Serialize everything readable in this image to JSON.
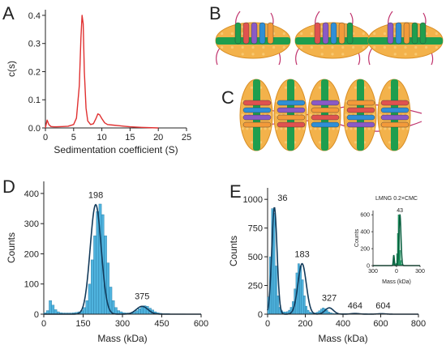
{
  "panels": {
    "A": "A",
    "B": "B",
    "C": "C",
    "D": "D",
    "E": "E"
  },
  "colors": {
    "sv_line": "#e03030",
    "hist_fill": "#4fb3de",
    "hist_stroke": "#1d6f99",
    "fit_line": "#123a5a",
    "inset_fill": "#30c07a",
    "inset_line": "#0a6040",
    "nanodisc_lipid": "#f3b24b",
    "nanodisc_belt": "#1f9e4e",
    "tail": "#c0336d"
  },
  "chart_data": [
    {
      "id": "A",
      "type": "line",
      "title": "",
      "xlabel": "Sedimentation coefficient (S)",
      "ylabel": "c(s)",
      "xlim": [
        0,
        25
      ],
      "ylim": [
        0,
        0.42
      ],
      "xticks": [
        "0",
        "5",
        "10",
        "15",
        "20",
        "25"
      ],
      "yticks": [
        "0.0",
        "0.1",
        "0.2",
        "0.3",
        "0.4"
      ],
      "x": [
        0,
        0.3,
        0.6,
        1,
        1.5,
        2,
        3,
        4,
        5,
        5.5,
        6,
        6.3,
        6.5,
        6.7,
        6.9,
        7.2,
        7.5,
        8,
        8.5,
        9,
        9.3,
        9.6,
        10,
        10.5,
        11,
        12,
        13,
        14,
        15,
        17,
        20
      ],
      "series": [
        {
          "values": [
            0.0,
            0.028,
            0.012,
            0.005,
            0.004,
            0.004,
            0.005,
            0.006,
            0.012,
            0.035,
            0.15,
            0.32,
            0.4,
            0.37,
            0.2,
            0.07,
            0.025,
            0.012,
            0.015,
            0.035,
            0.05,
            0.047,
            0.033,
            0.018,
            0.012,
            0.01,
            0.008,
            0.006,
            0.004,
            0.002,
            0.0
          ]
        }
      ]
    },
    {
      "id": "D",
      "type": "bar",
      "title": "",
      "xlabel": "Mass (kDa)",
      "ylabel": "Counts",
      "xlim": [
        0,
        600
      ],
      "ylim": [
        0,
        440
      ],
      "xticks": [
        "0",
        "150",
        "300",
        "450",
        "600"
      ],
      "yticks": [
        "0",
        "100",
        "200",
        "300",
        "400"
      ],
      "bin_width": 10,
      "bin_start": 0,
      "counts": [
        5,
        12,
        45,
        30,
        15,
        8,
        5,
        4,
        4,
        4,
        4,
        5,
        6,
        8,
        12,
        22,
        45,
        100,
        180,
        260,
        340,
        365,
        330,
        260,
        170,
        90,
        45,
        22,
        12,
        8,
        5,
        4,
        4,
        5,
        7,
        12,
        18,
        24,
        28,
        26,
        20,
        14,
        8,
        5,
        3,
        2,
        2,
        2,
        1,
        1,
        1,
        1,
        1,
        1,
        0,
        0,
        0,
        0,
        0,
        0
      ],
      "fit": [
        {
          "center": 198,
          "amplitude": 363,
          "sigma": 21
        },
        {
          "center": 375,
          "amplitude": 26,
          "sigma": 22
        }
      ],
      "annotations": [
        {
          "label": "198",
          "x": 198,
          "y": 363
        },
        {
          "label": "375",
          "x": 375,
          "y": 28
        }
      ]
    },
    {
      "id": "E",
      "type": "bar",
      "title": "",
      "xlabel": "Mass (kDa)",
      "ylabel": "Counts",
      "xlim": [
        0,
        800
      ],
      "ylim": [
        0,
        1100
      ],
      "xticks": [
        "0",
        "200",
        "400",
        "600",
        "800"
      ],
      "yticks": [
        "0",
        "250",
        "500",
        "750",
        "1000"
      ],
      "bin_width": 10,
      "bin_start": 0,
      "counts": [
        150,
        500,
        920,
        880,
        420,
        160,
        60,
        30,
        20,
        20,
        22,
        35,
        60,
        110,
        220,
        360,
        440,
        420,
        300,
        160,
        70,
        35,
        18,
        12,
        10,
        12,
        18,
        30,
        45,
        55,
        48,
        35,
        20,
        12,
        8,
        6,
        5,
        5,
        5,
        6,
        6,
        6,
        5,
        5,
        4,
        4,
        4,
        4,
        5,
        5,
        5,
        5,
        5,
        4,
        4,
        3,
        3,
        3,
        3,
        3,
        2,
        2,
        2,
        2,
        2,
        2,
        2,
        2,
        1,
        1,
        1,
        1,
        1,
        1,
        1,
        1,
        1,
        1,
        1,
        1
      ],
      "fit": [
        {
          "center": 36,
          "amplitude": 930,
          "sigma": 14
        },
        {
          "center": 183,
          "amplitude": 440,
          "sigma": 22
        },
        {
          "center": 327,
          "amplitude": 55,
          "sigma": 22
        },
        {
          "center": 464,
          "amplitude": 6,
          "sigma": 22
        },
        {
          "center": 604,
          "amplitude": 4,
          "sigma": 22
        }
      ],
      "annotations": [
        {
          "label": "36",
          "x": 36,
          "y": 930
        },
        {
          "label": "183",
          "x": 183,
          "y": 440
        },
        {
          "label": "327",
          "x": 327,
          "y": 60
        },
        {
          "label": "464",
          "x": 464,
          "y": 8
        },
        {
          "label": "604",
          "x": 604,
          "y": 6
        }
      ],
      "inset": {
        "type": "bar",
        "title": "LMNG 0.2×CMC",
        "xlabel": "Mass (kDa)",
        "ylabel": "Counts",
        "xlim": [
          -300,
          300
        ],
        "ylim": [
          0,
          650
        ],
        "xticks": [
          "300",
          "0",
          "300"
        ],
        "yticks": [
          "0",
          "200",
          "400",
          "600"
        ],
        "bin_width": 10,
        "bin_start": -300,
        "counts": [
          0,
          0,
          0,
          0,
          0,
          0,
          0,
          0,
          0,
          0,
          0,
          0,
          0,
          0,
          0,
          0,
          0,
          0,
          0,
          0,
          0,
          0,
          0,
          0,
          2,
          30,
          120,
          40,
          12,
          25,
          140,
          380,
          600,
          420,
          180,
          60,
          15,
          5,
          2,
          1,
          1,
          0,
          0,
          0,
          0,
          0,
          0,
          0,
          0,
          0,
          0,
          0,
          0,
          0,
          0,
          0,
          0,
          0,
          0,
          0
        ],
        "fit": [
          {
            "center": -35,
            "amplitude": 120,
            "sigma": 6
          },
          {
            "center": 43,
            "amplitude": 600,
            "sigma": 13
          }
        ],
        "annotations": [
          {
            "label": "43",
            "x": 43,
            "y": 600
          }
        ]
      }
    }
  ]
}
